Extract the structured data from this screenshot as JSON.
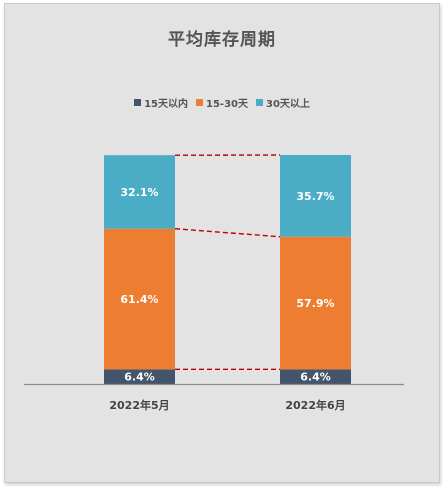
{
  "chart_data": {
    "type": "bar",
    "stacked": true,
    "title": "平均库存周期",
    "categories": [
      "2022年5月",
      "2022年6月"
    ],
    "series": [
      {
        "name": "15天以内",
        "color": "#44546a",
        "values": [
          6.4,
          6.4
        ],
        "labels": [
          "6.4%",
          "6.4%"
        ]
      },
      {
        "name": "15-30天",
        "color": "#ed7d31",
        "values": [
          61.4,
          57.9
        ],
        "labels": [
          "61.4%",
          "57.9%"
        ]
      },
      {
        "name": "30天以上",
        "color": "#4bacc6",
        "values": [
          32.1,
          35.7
        ],
        "labels": [
          "32.1%",
          "35.7%"
        ]
      }
    ],
    "ylim": [
      0,
      100
    ],
    "legend_position": "top",
    "series_lines": true,
    "series_line_color": "#c00000",
    "grid": false
  }
}
